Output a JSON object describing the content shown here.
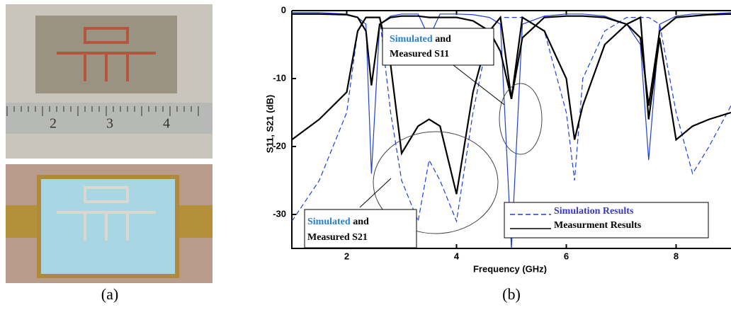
{
  "figure": {
    "caption_a": "(a)",
    "caption_b": "(b)",
    "ruler_labels": [
      "2",
      "3",
      "4"
    ]
  },
  "chart_data": {
    "type": "line",
    "y_label": "S11, S21 (dB)",
    "x_label": "Frequency (GHz)",
    "xlim": [
      1,
      9
    ],
    "ylim": [
      -35,
      0
    ],
    "xticks": [
      2,
      4,
      6,
      8
    ],
    "yticks": [
      0,
      -10,
      -20,
      -30
    ],
    "x": [
      1,
      1.5,
      2,
      2.2,
      2.35,
      2.45,
      2.6,
      2.8,
      3,
      3.3,
      3.5,
      3.7,
      4,
      4.3,
      4.6,
      4.8,
      5,
      5.2,
      5.6,
      6,
      6.15,
      6.3,
      6.7,
      7.1,
      7.35,
      7.5,
      7.7,
      8,
      8.3,
      8.6,
      9
    ],
    "series": [
      {
        "name": "Simulation Results",
        "color": "#1f3fd6",
        "dash": true,
        "values": [
          -31,
          -25,
          -15,
          -3,
          -1,
          -1,
          -1,
          -15,
          -25,
          -31,
          -22,
          -25,
          -31,
          -15,
          -3,
          -1,
          -1,
          -1,
          -3,
          -15,
          -25,
          -10,
          -3,
          -1,
          -1,
          -1,
          -2,
          -15,
          -24,
          -20,
          -14
        ]
      },
      {
        "color": "#1f3fd6",
        "dash": false,
        "values": [
          -0.3,
          -0.3,
          -0.5,
          -1,
          -2,
          -24,
          -2,
          -0.8,
          -0.5,
          -0.5,
          -4,
          -0.5,
          -0.5,
          -0.6,
          -1,
          -2,
          -35,
          -2,
          -0.8,
          -0.5,
          -0.5,
          -0.5,
          -0.8,
          -2,
          -5,
          -22,
          -2,
          -0.8,
          -0.5,
          -0.5,
          -0.3
        ]
      },
      {
        "name": "Measurment Results",
        "color": "#000000",
        "dash": false,
        "values": [
          -19,
          -16,
          -12,
          -3,
          -1,
          -1,
          -1,
          -8,
          -21,
          -17,
          -16,
          -17,
          -27,
          -12,
          -3,
          -1,
          -13,
          -1,
          -3,
          -10,
          -19,
          -14,
          -5,
          -2,
          -1,
          -16,
          -4,
          -19,
          -17,
          -16,
          -15
        ]
      },
      {
        "color": "#000000",
        "dash": false,
        "values": [
          -0.5,
          -0.5,
          -0.6,
          -1,
          -3,
          -11,
          -2,
          -1,
          -0.8,
          -0.8,
          -1,
          -1,
          -1,
          -1.5,
          -3,
          -6,
          -13,
          -4,
          -1,
          -0.8,
          -0.8,
          -0.8,
          -1,
          -2,
          -4,
          -14,
          -3,
          -1,
          -0.8,
          -0.6,
          -0.5
        ]
      }
    ],
    "annotations": [
      {
        "blue": "Simulated",
        "rest": "and",
        "line2": "Measured S11"
      },
      {
        "blue": "Simulated",
        "rest": "and",
        "line2": "Measured S21"
      }
    ]
  }
}
